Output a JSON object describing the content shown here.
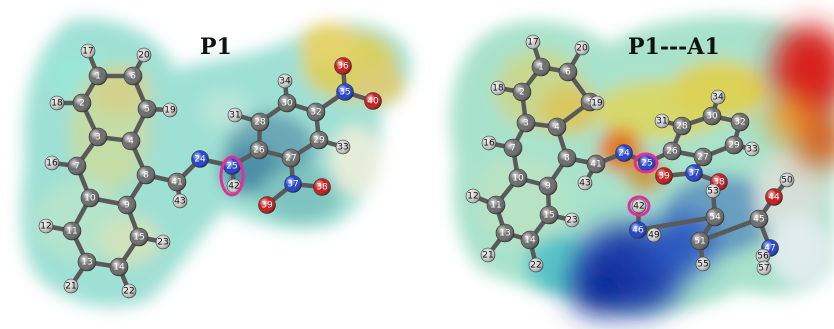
{
  "panels": [
    {
      "title": "P1",
      "bonds": [
        [
          "17",
          "1"
        ],
        [
          "20",
          "6"
        ],
        [
          "1",
          "6"
        ],
        [
          "1",
          "2"
        ],
        [
          "6",
          "5"
        ],
        [
          "18",
          "2"
        ],
        [
          "5",
          "19"
        ],
        [
          "2",
          "3"
        ],
        [
          "5",
          "4"
        ],
        [
          "3",
          "4"
        ],
        [
          "3",
          "7"
        ],
        [
          "4",
          "8"
        ],
        [
          "7",
          "16"
        ],
        [
          "7",
          "10"
        ],
        [
          "8",
          "9"
        ],
        [
          "10",
          "9"
        ],
        [
          "8",
          "41"
        ],
        [
          "41",
          "43"
        ],
        [
          "41",
          "24"
        ],
        [
          "24",
          "25"
        ],
        [
          "25",
          "42"
        ],
        [
          "25",
          "26"
        ],
        [
          "26",
          "28"
        ],
        [
          "26",
          "27"
        ],
        [
          "28",
          "31"
        ],
        [
          "28",
          "30"
        ],
        [
          "30",
          "34"
        ],
        [
          "30",
          "32"
        ],
        [
          "32",
          "29"
        ],
        [
          "27",
          "29"
        ],
        [
          "29",
          "33"
        ],
        [
          "32",
          "35"
        ],
        [
          "35",
          "36"
        ],
        [
          "35",
          "40"
        ],
        [
          "27",
          "37"
        ],
        [
          "37",
          "38"
        ],
        [
          "37",
          "39"
        ],
        [
          "10",
          "11"
        ],
        [
          "11",
          "12"
        ],
        [
          "11",
          "13"
        ],
        [
          "13",
          "21"
        ],
        [
          "13",
          "14"
        ],
        [
          "14",
          "22"
        ],
        [
          "14",
          "15"
        ],
        [
          "15",
          "23"
        ],
        [
          "15",
          "9"
        ]
      ],
      "atoms": [
        {
          "id": "17",
          "el": "H"
        },
        {
          "id": "20",
          "el": "H"
        },
        {
          "id": "1",
          "el": "C"
        },
        {
          "id": "6",
          "el": "C"
        },
        {
          "id": "18",
          "el": "H"
        },
        {
          "id": "2",
          "el": "C"
        },
        {
          "id": "5",
          "el": "C"
        },
        {
          "id": "19",
          "el": "H"
        },
        {
          "id": "3",
          "el": "C"
        },
        {
          "id": "4",
          "el": "C"
        },
        {
          "id": "16",
          "el": "H"
        },
        {
          "id": "7",
          "el": "C"
        },
        {
          "id": "8",
          "el": "C"
        },
        {
          "id": "41",
          "el": "C"
        },
        {
          "id": "43",
          "el": "H"
        },
        {
          "id": "24",
          "el": "N"
        },
        {
          "id": "25",
          "el": "N"
        },
        {
          "id": "42",
          "el": "H"
        },
        {
          "id": "26",
          "el": "C"
        },
        {
          "id": "28",
          "el": "C"
        },
        {
          "id": "31",
          "el": "H"
        },
        {
          "id": "30",
          "el": "C"
        },
        {
          "id": "34",
          "el": "H"
        },
        {
          "id": "32",
          "el": "C"
        },
        {
          "id": "29",
          "el": "C"
        },
        {
          "id": "27",
          "el": "C"
        },
        {
          "id": "33",
          "el": "H"
        },
        {
          "id": "35",
          "el": "N"
        },
        {
          "id": "36",
          "el": "O"
        },
        {
          "id": "40",
          "el": "O"
        },
        {
          "id": "37",
          "el": "N"
        },
        {
          "id": "38",
          "el": "O"
        },
        {
          "id": "39",
          "el": "O"
        },
        {
          "id": "10",
          "el": "C"
        },
        {
          "id": "9",
          "el": "C"
        },
        {
          "id": "12",
          "el": "H"
        },
        {
          "id": "11",
          "el": "C"
        },
        {
          "id": "13",
          "el": "C"
        },
        {
          "id": "14",
          "el": "C"
        },
        {
          "id": "15",
          "el": "C"
        },
        {
          "id": "23",
          "el": "H"
        },
        {
          "id": "21",
          "el": "H"
        },
        {
          "id": "22",
          "el": "H"
        }
      ],
      "highlight_atoms": [
        "25",
        "42"
      ]
    },
    {
      "title": "P1---A1",
      "bonds": [
        [
          "17",
          "1"
        ],
        [
          "20",
          "6"
        ],
        [
          "1",
          "6"
        ],
        [
          "1",
          "2"
        ],
        [
          "6",
          "5"
        ],
        [
          "18",
          "2"
        ],
        [
          "5",
          "19"
        ],
        [
          "2",
          "3"
        ],
        [
          "5",
          "4"
        ],
        [
          "3",
          "4"
        ],
        [
          "3",
          "7"
        ],
        [
          "4",
          "8"
        ],
        [
          "7",
          "16"
        ],
        [
          "7",
          "10"
        ],
        [
          "8",
          "9"
        ],
        [
          "10",
          "9"
        ],
        [
          "8",
          "41"
        ],
        [
          "41",
          "43"
        ],
        [
          "41",
          "24"
        ],
        [
          "24",
          "25"
        ],
        [
          "25",
          "26"
        ],
        [
          "26",
          "28"
        ],
        [
          "26",
          "27"
        ],
        [
          "28",
          "31"
        ],
        [
          "28",
          "30"
        ],
        [
          "30",
          "34"
        ],
        [
          "30",
          "32"
        ],
        [
          "32",
          "29"
        ],
        [
          "27",
          "29"
        ],
        [
          "29",
          "33"
        ],
        [
          "27",
          "37"
        ],
        [
          "37",
          "38"
        ],
        [
          "37",
          "39"
        ],
        [
          "10",
          "11"
        ],
        [
          "11",
          "12"
        ],
        [
          "11",
          "13"
        ],
        [
          "13",
          "21"
        ],
        [
          "13",
          "14"
        ],
        [
          "14",
          "22"
        ],
        [
          "14",
          "15"
        ],
        [
          "15",
          "23"
        ],
        [
          "15",
          "9"
        ],
        [
          "42",
          "46"
        ],
        [
          "46",
          "49"
        ],
        [
          "46",
          "54"
        ],
        [
          "54",
          "53"
        ],
        [
          "54",
          "51"
        ],
        [
          "51",
          "55"
        ],
        [
          "51",
          "45"
        ],
        [
          "45",
          "44"
        ],
        [
          "44",
          "50"
        ],
        [
          "45",
          "47"
        ],
        [
          "47",
          "56"
        ],
        [
          "47",
          "57"
        ]
      ],
      "atoms": [
        {
          "id": "17",
          "el": "H"
        },
        {
          "id": "20",
          "el": "H"
        },
        {
          "id": "1",
          "el": "C"
        },
        {
          "id": "6",
          "el": "C"
        },
        {
          "id": "18",
          "el": "H"
        },
        {
          "id": "2",
          "el": "C"
        },
        {
          "id": "5",
          "el": "C"
        },
        {
          "id": "19",
          "el": "H"
        },
        {
          "id": "3",
          "el": "C"
        },
        {
          "id": "4",
          "el": "C"
        },
        {
          "id": "16",
          "el": "H"
        },
        {
          "id": "7",
          "el": "C"
        },
        {
          "id": "8",
          "el": "C"
        },
        {
          "id": "41",
          "el": "C"
        },
        {
          "id": "43",
          "el": "H"
        },
        {
          "id": "24",
          "el": "N"
        },
        {
          "id": "25",
          "el": "N"
        },
        {
          "id": "26",
          "el": "C"
        },
        {
          "id": "28",
          "el": "C"
        },
        {
          "id": "31",
          "el": "H"
        },
        {
          "id": "30",
          "el": "C"
        },
        {
          "id": "34",
          "el": "H"
        },
        {
          "id": "32",
          "el": "C"
        },
        {
          "id": "29",
          "el": "C"
        },
        {
          "id": "27",
          "el": "C"
        },
        {
          "id": "33",
          "el": "H"
        },
        {
          "id": "37",
          "el": "N"
        },
        {
          "id": "38",
          "el": "O"
        },
        {
          "id": "39",
          "el": "O"
        },
        {
          "id": "10",
          "el": "C"
        },
        {
          "id": "9",
          "el": "C"
        },
        {
          "id": "12",
          "el": "H"
        },
        {
          "id": "11",
          "el": "C"
        },
        {
          "id": "13",
          "el": "C"
        },
        {
          "id": "14",
          "el": "C"
        },
        {
          "id": "15",
          "el": "C"
        },
        {
          "id": "23",
          "el": "H"
        },
        {
          "id": "21",
          "el": "H"
        },
        {
          "id": "22",
          "el": "H"
        },
        {
          "id": "42",
          "el": "H"
        },
        {
          "id": "46",
          "el": "N"
        },
        {
          "id": "49",
          "el": "H"
        },
        {
          "id": "54",
          "el": "C"
        },
        {
          "id": "53",
          "el": "H"
        },
        {
          "id": "51",
          "el": "C"
        },
        {
          "id": "55",
          "el": "H"
        },
        {
          "id": "45",
          "el": "C"
        },
        {
          "id": "44",
          "el": "O"
        },
        {
          "id": "50",
          "el": "H"
        },
        {
          "id": "47",
          "el": "N"
        },
        {
          "id": "56",
          "el": "H"
        },
        {
          "id": "57",
          "el": "H"
        }
      ],
      "highlight_atoms": [
        "25",
        "42"
      ]
    }
  ],
  "element_colors": {
    "C": "#6b6b6b",
    "H": "#cfcfcf",
    "N": "#1f3fcf",
    "O": "#c81818",
    "highlight": "#e0309a"
  }
}
